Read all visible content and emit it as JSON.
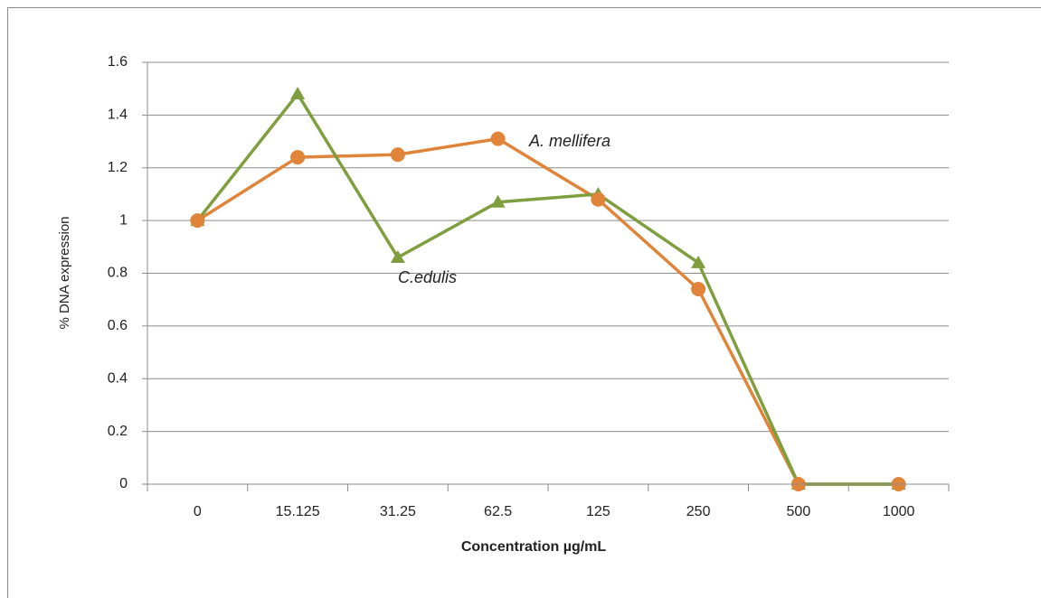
{
  "chart_data": {
    "type": "line",
    "x_label": "Concentration µg/mL",
    "y_label": "% DNA expression",
    "categories": [
      "0",
      "15.125",
      "31.25",
      "62.5",
      "125",
      "250",
      "500",
      "1000"
    ],
    "series": [
      {
        "name": "A. mellifera",
        "color": "#e0843a",
        "marker": "circle",
        "values": [
          1,
          1.24,
          1.25,
          1.31,
          1.08,
          0.74,
          0,
          0
        ]
      },
      {
        "name": "C.edulis",
        "color": "#7f9f3f",
        "marker": "triangle",
        "values": [
          1,
          1.48,
          0.86,
          1.07,
          1.1,
          0.84,
          0,
          0
        ]
      }
    ],
    "ylim": [
      0,
      1.6
    ],
    "yticks": [
      0,
      0.2,
      0.4,
      0.6,
      0.8,
      1,
      1.2,
      1.4,
      1.6
    ],
    "grid": true
  }
}
